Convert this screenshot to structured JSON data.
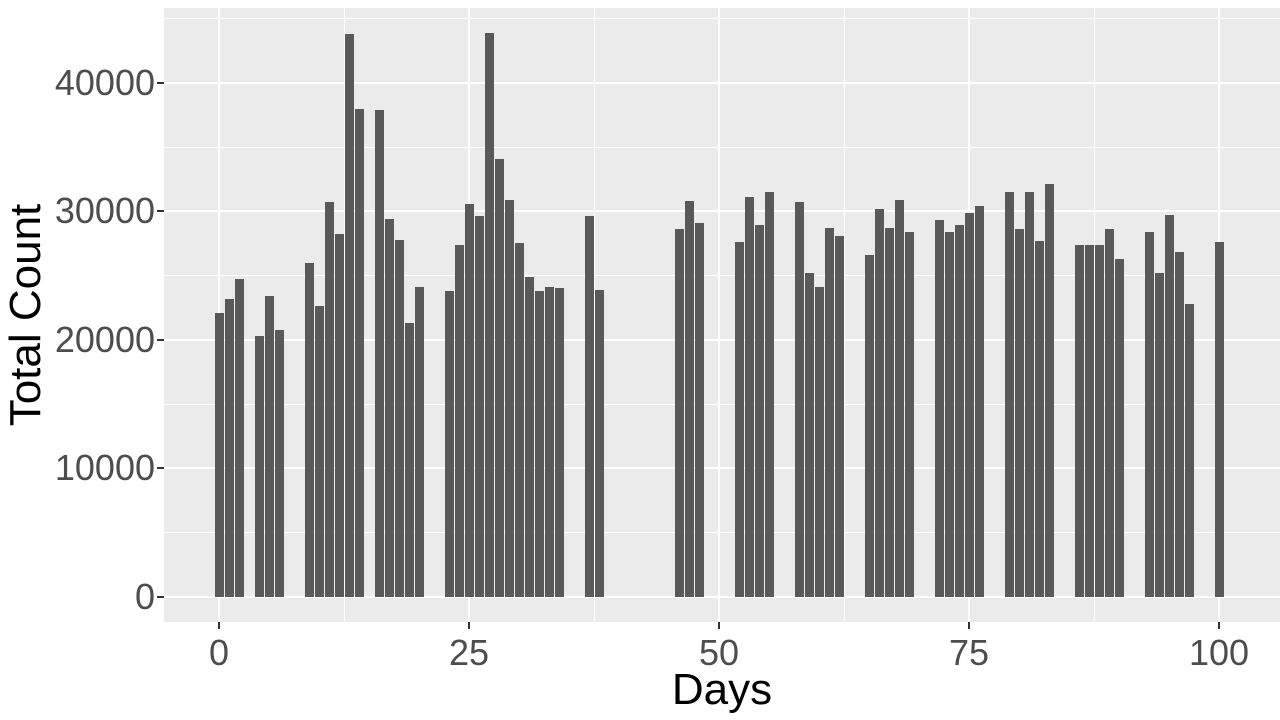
{
  "chart_data": {
    "type": "bar",
    "title": "",
    "xlabel": "Days",
    "ylabel": "Total Count",
    "x": [
      0,
      1,
      2,
      4,
      5,
      6,
      9,
      10,
      11,
      12,
      13,
      14,
      16,
      17,
      18,
      19,
      20,
      23,
      24,
      25,
      26,
      27,
      28,
      29,
      30,
      31,
      32,
      33,
      34,
      37,
      38,
      46,
      47,
      48,
      52,
      53,
      54,
      55,
      58,
      59,
      60,
      61,
      62,
      65,
      66,
      67,
      68,
      69,
      72,
      73,
      74,
      75,
      76,
      79,
      80,
      81,
      82,
      83,
      86,
      87,
      88,
      89,
      90,
      93,
      94,
      95,
      96,
      97,
      100
    ],
    "values": [
      22100,
      23200,
      24700,
      20300,
      23400,
      20800,
      26000,
      22600,
      30700,
      28200,
      43800,
      38000,
      37900,
      29400,
      27800,
      21300,
      24100,
      23800,
      27400,
      30600,
      29600,
      43900,
      34100,
      30900,
      27500,
      24900,
      23800,
      24100,
      24000,
      29600,
      23900,
      28600,
      30800,
      29100,
      27600,
      31100,
      28900,
      31500,
      30700,
      25200,
      24100,
      28700,
      28100,
      26600,
      30200,
      28700,
      30900,
      28400,
      29300,
      28400,
      28900,
      29900,
      30400,
      31500,
      28600,
      31500,
      27700,
      32100,
      27400,
      27400,
      27400,
      28600,
      26300,
      28400,
      25200,
      29700,
      26800,
      22800,
      27600
    ],
    "x_ticks": [
      0,
      25,
      50,
      75,
      100
    ],
    "x_tick_labels": [
      "0",
      "25",
      "50",
      "75",
      "100"
    ],
    "x_minor_ticks": [
      12.5,
      37.5,
      62.5,
      87.5
    ],
    "y_ticks": [
      0,
      10000,
      20000,
      30000,
      40000
    ],
    "y_tick_labels": [
      "0",
      "10000",
      "20000",
      "30000",
      "40000"
    ],
    "y_minor_ticks": [
      5000,
      15000,
      25000,
      35000,
      45000
    ],
    "xlim": [
      -5.5,
      106.1
    ],
    "ylim": [
      0,
      45800
    ],
    "grid": true,
    "legend_position": "none",
    "bar_color": "#595959",
    "panel_bg_color": "#ebebeb",
    "grid_color": "#ffffff",
    "axis_text_color": "#4d4d4d",
    "axis_title_color": "#000000",
    "tick_mark_color": "#333333",
    "figure_bg_color": "#ffffff"
  }
}
